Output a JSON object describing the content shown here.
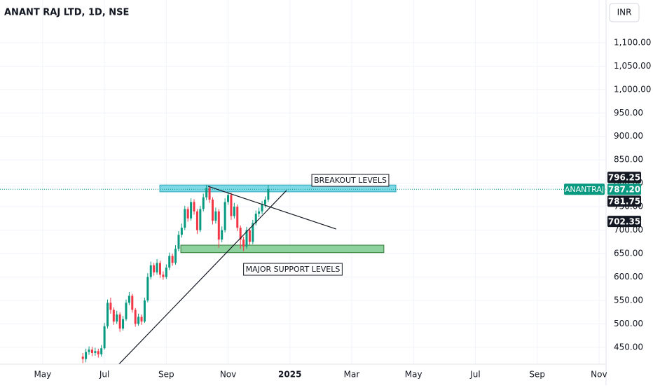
{
  "chart_data": {
    "type": "candlestick",
    "title": "ANANT RAJ LTD, 1D, NSE",
    "currency": "INR",
    "grid": true,
    "xlim": [
      -1.38,
      18.23
    ],
    "xticks": [
      {
        "value": 0,
        "label": "May"
      },
      {
        "value": 2,
        "label": "Jul"
      },
      {
        "value": 4,
        "label": "Sep"
      },
      {
        "value": 6,
        "label": "Nov"
      },
      {
        "value": 8,
        "label": "2025"
      },
      {
        "value": 10,
        "label": "Mar"
      },
      {
        "value": 12,
        "label": "May"
      },
      {
        "value": 14,
        "label": "Jul"
      },
      {
        "value": 16,
        "label": "Sep"
      },
      {
        "value": 18,
        "label": "Nov"
      }
    ],
    "ylim": [
      414,
      1191
    ],
    "yticks": [
      {
        "value": 450,
        "label": "450.00"
      },
      {
        "value": 500,
        "label": "500.00"
      },
      {
        "value": 550,
        "label": "550.00"
      },
      {
        "value": 600,
        "label": "600.00"
      },
      {
        "value": 650,
        "label": "650.00"
      },
      {
        "value": 700,
        "label": "700.00"
      },
      {
        "value": 750,
        "label": "750.00"
      },
      {
        "value": 800,
        "label": "800.00"
      },
      {
        "value": 850,
        "label": "850.00"
      },
      {
        "value": 900,
        "label": "900.00"
      },
      {
        "value": 950,
        "label": "950.00"
      },
      {
        "value": 1000,
        "label": "1,000.00"
      },
      {
        "value": 1050,
        "label": "1,050.00"
      },
      {
        "value": 1100,
        "label": "1,100.00"
      }
    ],
    "series": {
      "name": "ANANTRAJ",
      "up_color": "#089981",
      "down_color": "#f23645",
      "x": [
        1.3,
        1.4,
        1.5,
        1.6,
        1.7,
        1.8,
        1.9,
        2.0,
        2.1,
        2.2,
        2.3,
        2.4,
        2.5,
        2.6,
        2.7,
        2.8,
        2.9,
        3.0,
        3.1,
        3.2,
        3.3,
        3.4,
        3.5,
        3.6,
        3.7,
        3.8,
        3.9,
        4.0,
        4.1,
        4.2,
        4.3,
        4.4,
        4.5,
        4.6,
        4.7,
        4.8,
        4.9,
        5.0,
        5.1,
        5.2,
        5.3,
        5.4,
        5.5,
        5.6,
        5.7,
        5.8,
        5.9,
        6.0,
        6.1,
        6.2,
        6.3,
        6.4,
        6.5,
        6.6,
        6.7,
        6.8,
        6.9,
        7.0,
        7.1,
        7.2,
        7.3
      ],
      "open": [
        430,
        425,
        440,
        445,
        438,
        442,
        435,
        448,
        495,
        545,
        530,
        505,
        520,
        490,
        510,
        545,
        560,
        530,
        500,
        515,
        505,
        550,
        600,
        625,
        610,
        630,
        605,
        600,
        620,
        645,
        630,
        660,
        690,
        705,
        745,
        725,
        760,
        740,
        700,
        745,
        770,
        790,
        765,
        720,
        740,
        680,
        700,
        760,
        775,
        730,
        750,
        705,
        680,
        665,
        700,
        675,
        715,
        735,
        740,
        755,
        765
      ],
      "high": [
        438,
        447,
        452,
        451,
        449,
        447,
        455,
        502,
        552,
        556,
        535,
        528,
        525,
        517,
        552,
        568,
        564,
        534,
        522,
        520,
        556,
        608,
        633,
        630,
        638,
        635,
        612,
        627,
        652,
        650,
        668,
        698,
        714,
        752,
        750,
        768,
        766,
        745,
        752,
        778,
        797,
        794,
        770,
        748,
        745,
        708,
        768,
        782,
        780,
        758,
        755,
        710,
        686,
        707,
        705,
        722,
        742,
        748,
        762,
        772,
        796
      ],
      "low": [
        416,
        418,
        434,
        431,
        432,
        428,
        430,
        445,
        490,
        522,
        498,
        500,
        483,
        486,
        506,
        540,
        524,
        494,
        496,
        498,
        502,
        546,
        595,
        603,
        605,
        598,
        594,
        596,
        615,
        624,
        626,
        655,
        684,
        700,
        718,
        720,
        733,
        692,
        696,
        740,
        764,
        758,
        712,
        714,
        662,
        674,
        695,
        754,
        722,
        725,
        698,
        660,
        655,
        660,
        668,
        670,
        710,
        728,
        734,
        748,
        760
      ],
      "close": [
        425,
        440,
        445,
        438,
        442,
        435,
        448,
        495,
        545,
        530,
        505,
        520,
        490,
        510,
        545,
        560,
        530,
        500,
        515,
        505,
        550,
        600,
        625,
        610,
        630,
        605,
        600,
        620,
        645,
        630,
        660,
        690,
        705,
        745,
        725,
        760,
        740,
        700,
        745,
        770,
        790,
        765,
        720,
        740,
        680,
        700,
        760,
        775,
        730,
        750,
        705,
        680,
        665,
        700,
        675,
        715,
        735,
        740,
        755,
        765,
        787.2
      ]
    },
    "last_price": {
      "value": 787.2,
      "label": "787.20"
    },
    "price_labels": [
      {
        "value": 796.25,
        "label": "796.25"
      },
      {
        "value": 781.75,
        "label": "781.75"
      },
      {
        "value": 702.35,
        "label": "702.35"
      }
    ],
    "zones": [
      {
        "label": "BREAKOUT LEVELS",
        "x": [
          3.79,
          11.43
        ],
        "y": [
          781.75,
          796.25
        ],
        "color": "#7fd8e6",
        "border": "#2aa7bd"
      },
      {
        "label": "MAJOR SUPPORT LEVELS",
        "x": [
          4.47,
          11.04
        ],
        "y": [
          652,
          668
        ],
        "color": "#8fd19e",
        "border": "#2e7d32"
      }
    ],
    "trendlines": [
      {
        "x": [
          2.47,
          7.89
        ],
        "y": [
          414.1,
          784.7
        ]
      },
      {
        "x": [
          5.35,
          9.5
        ],
        "y": [
          793.6,
          702.35
        ]
      }
    ]
  }
}
